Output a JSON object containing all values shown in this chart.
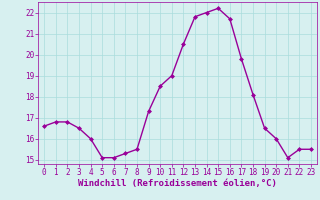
{
  "x": [
    0,
    1,
    2,
    3,
    4,
    5,
    6,
    7,
    8,
    9,
    10,
    11,
    12,
    13,
    14,
    15,
    16,
    17,
    18,
    19,
    20,
    21,
    22,
    23
  ],
  "y": [
    16.6,
    16.8,
    16.8,
    16.5,
    16.0,
    15.1,
    15.1,
    15.3,
    15.5,
    17.3,
    18.5,
    19.0,
    20.5,
    21.8,
    22.0,
    22.2,
    21.7,
    19.8,
    18.1,
    16.5,
    16.0,
    15.1,
    15.5,
    15.5
  ],
  "line_color": "#990099",
  "marker": "D",
  "marker_size": 2,
  "bg_color": "#d7f0f0",
  "grid_color": "#aadddd",
  "xlabel": "Windchill (Refroidissement éolien,°C)",
  "xlabel_color": "#990099",
  "xlim": [
    -0.5,
    23.5
  ],
  "ylim": [
    14.8,
    22.5
  ],
  "xticks": [
    0,
    1,
    2,
    3,
    4,
    5,
    6,
    7,
    8,
    9,
    10,
    11,
    12,
    13,
    14,
    15,
    16,
    17,
    18,
    19,
    20,
    21,
    22,
    23
  ],
  "yticks": [
    15,
    16,
    17,
    18,
    19,
    20,
    21,
    22
  ],
  "tick_color": "#990099",
  "tick_fontsize": 5.5,
  "xlabel_fontsize": 6.5,
  "line_width": 1.0
}
